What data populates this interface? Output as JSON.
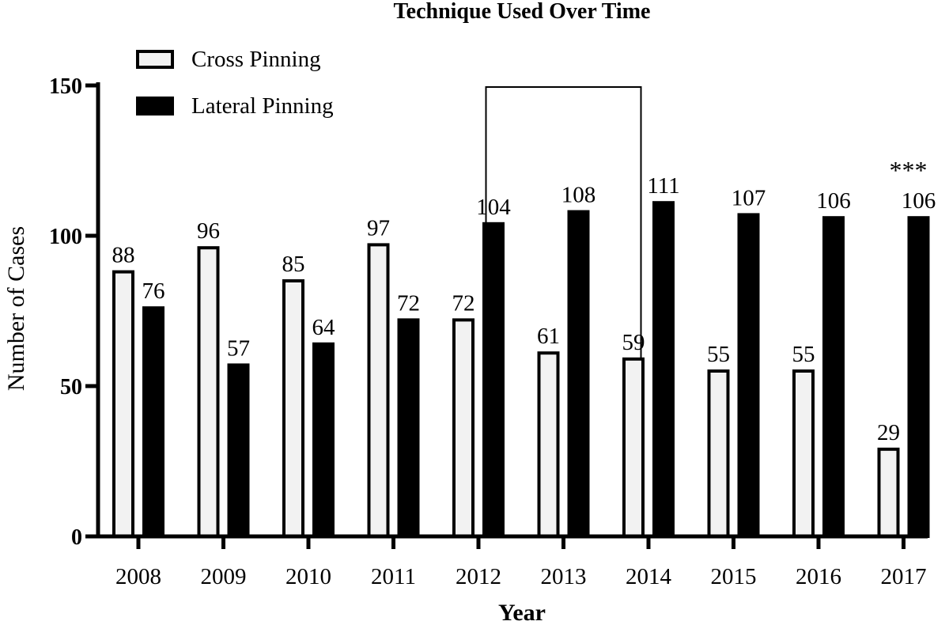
{
  "chart_data": {
    "type": "bar",
    "title": "Technique Used Over Time",
    "xlabel": "Year",
    "ylabel": "Number of Cases",
    "ylim": [
      0,
      150
    ],
    "yticks": [
      0,
      50,
      100,
      150
    ],
    "categories": [
      "2008",
      "2009",
      "2010",
      "2011",
      "2012",
      "2013",
      "2014",
      "2015",
      "2016",
      "2017"
    ],
    "series": [
      {
        "name": "Cross Pinning",
        "fill": "#f2f2f2",
        "values": [
          88,
          96,
          85,
          97,
          72,
          61,
          59,
          55,
          55,
          29
        ]
      },
      {
        "name": "Lateral Pinning",
        "fill": "#000000",
        "values": [
          76,
          57,
          64,
          72,
          104,
          108,
          111,
          107,
          106,
          106
        ]
      }
    ],
    "legend_position": "top-left",
    "annotations": [
      {
        "category": "2017",
        "text": "***"
      }
    ],
    "highlight": {
      "category": "2013",
      "style": "outlined box"
    },
    "grid": false
  }
}
